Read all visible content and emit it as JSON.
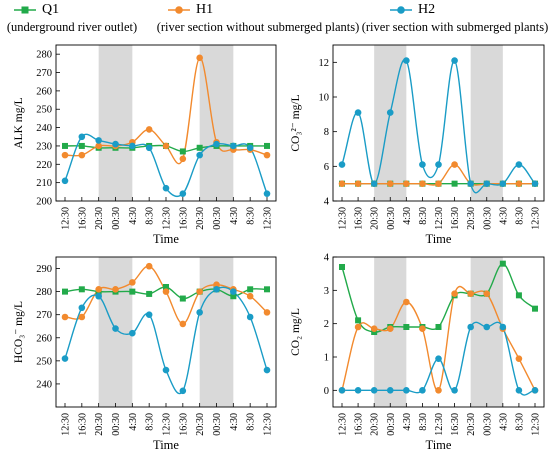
{
  "legend": {
    "items": [
      {
        "name": "Q1",
        "desc": "(underground river outlet)",
        "color": "#22aa4a",
        "marker": "square"
      },
      {
        "name": "H1",
        "desc": "(river section without submerged plants)",
        "color": "#f28a2e",
        "marker": "circle"
      },
      {
        "name": "H2",
        "desc": "(river section with submerged plants)",
        "color": "#1a9cc6",
        "marker": "circle"
      }
    ]
  },
  "shade_color": "#d9d9d9",
  "chart_data": [
    {
      "type": "line",
      "xlabel": "Time",
      "ylabel": "ALK  mg/L",
      "ylim": [
        200,
        285
      ],
      "yticks": [
        200,
        210,
        220,
        230,
        240,
        250,
        260,
        270,
        280
      ],
      "categories": [
        "12:30",
        "16:30",
        "20:30",
        "00:30",
        "4:30",
        "8:30",
        "12:30",
        "16:30",
        "20:30",
        "00:30",
        "4:30",
        "8:30",
        "12:30"
      ],
      "shaded_ranges": [
        [
          2,
          4
        ],
        [
          8,
          10
        ]
      ],
      "series": [
        {
          "name": "Q1",
          "values": [
            230,
            230,
            229,
            229,
            229,
            230,
            230,
            227,
            229,
            230,
            230,
            230,
            230
          ]
        },
        {
          "name": "H1",
          "values": [
            225,
            225,
            230,
            230,
            232,
            239,
            230,
            223,
            278,
            232,
            228,
            228,
            225
          ]
        },
        {
          "name": "H2",
          "values": [
            211,
            235,
            233,
            231,
            230,
            229,
            207,
            204,
            225,
            231,
            230,
            229,
            204
          ]
        }
      ]
    },
    {
      "type": "line",
      "xlabel": "Time",
      "ylabel": "CO₃²⁻ mg/L",
      "ylim": [
        4,
        13
      ],
      "yticks": [
        4,
        6,
        8,
        10,
        12
      ],
      "categories": [
        "12:30",
        "16:30",
        "20:30",
        "00:30",
        "4:30",
        "8:30",
        "12:30",
        "16:30",
        "20:30",
        "00:30",
        "4:30",
        "8:30",
        "12:30"
      ],
      "shaded_ranges": [
        [
          2,
          4
        ],
        [
          8,
          10
        ]
      ],
      "series": [
        {
          "name": "Q1",
          "values": [
            5,
            5,
            5,
            5,
            5,
            5,
            5,
            5,
            5,
            5,
            5,
            5,
            5
          ]
        },
        {
          "name": "H1",
          "values": [
            5,
            5,
            5,
            5,
            5,
            5,
            5,
            6.1,
            5,
            5,
            5,
            5,
            5
          ]
        },
        {
          "name": "H2",
          "values": [
            6.1,
            9.1,
            5,
            9.1,
            12.1,
            6.1,
            6.1,
            12.1,
            5,
            5,
            5,
            6.1,
            5
          ]
        }
      ]
    },
    {
      "type": "line",
      "xlabel": "Time",
      "ylabel": "HCO₃⁻ mg/L",
      "ylim": [
        230,
        295
      ],
      "yticks": [
        240,
        250,
        260,
        270,
        280,
        290
      ],
      "categories": [
        "12:30",
        "16:30",
        "20:30",
        "00:30",
        "4:30",
        "8:30",
        "12:30",
        "16:30",
        "20:30",
        "00:30",
        "4:30",
        "8:30",
        "12:30"
      ],
      "shaded_ranges": [
        [
          2,
          4
        ],
        [
          8,
          10
        ]
      ],
      "series": [
        {
          "name": "Q1",
          "values": [
            280,
            281,
            280,
            280,
            280,
            279,
            282,
            277,
            280,
            281,
            278,
            281,
            281
          ]
        },
        {
          "name": "H1",
          "values": [
            269,
            269,
            281,
            281,
            284,
            291,
            280,
            266,
            280,
            283,
            281,
            278,
            271
          ]
        },
        {
          "name": "H2",
          "values": [
            251,
            273,
            278,
            264,
            262,
            270,
            246,
            237,
            271,
            281,
            280,
            269,
            246
          ]
        }
      ]
    },
    {
      "type": "line",
      "xlabel": "Time",
      "ylabel": "CO₂ mg/L",
      "ylim": [
        -0.5,
        4
      ],
      "yticks": [
        0,
        1,
        2,
        3,
        4
      ],
      "categories": [
        "12:30",
        "16:30",
        "20:30",
        "00:30",
        "4:30",
        "8:30",
        "12:30",
        "16:30",
        "20:30",
        "00:30",
        "4:30",
        "8:30",
        "12:30"
      ],
      "shaded_ranges": [
        [
          2,
          4
        ],
        [
          8,
          10
        ]
      ],
      "series": [
        {
          "name": "Q1",
          "values": [
            3.7,
            2.1,
            1.75,
            1.9,
            1.9,
            1.9,
            1.9,
            2.85,
            2.9,
            2.9,
            3.8,
            2.85,
            2.45
          ]
        },
        {
          "name": "H1",
          "values": [
            0,
            1.9,
            1.85,
            1.85,
            2.65,
            1.85,
            0,
            2.9,
            2.9,
            2.9,
            1.85,
            0.95,
            0
          ]
        },
        {
          "name": "H2",
          "values": [
            0,
            0,
            0,
            0,
            0,
            0,
            0.95,
            0,
            1.9,
            1.9,
            1.9,
            0,
            0
          ]
        }
      ]
    }
  ]
}
